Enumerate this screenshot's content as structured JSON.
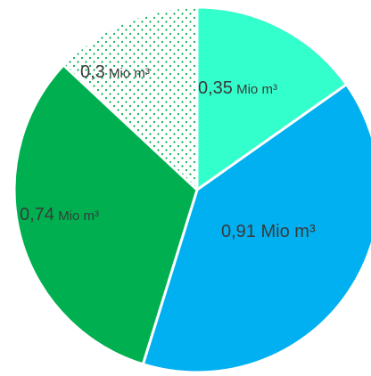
{
  "chart_data": {
    "type": "pie",
    "start_angle_deg": 0,
    "direction": "clockwise",
    "slices": [
      {
        "value": 0.35,
        "value_label": "0,35",
        "unit_label": "Mio m³",
        "color": "#33FFCC",
        "fill": "solid"
      },
      {
        "value": 0.91,
        "value_label": "0,91",
        "unit_label": "Mio m³",
        "color": "#00B0F0",
        "fill": "solid"
      },
      {
        "value": 0.74,
        "value_label": "0,74",
        "unit_label": "Mio m³",
        "color": "#00B050",
        "fill": "solid"
      },
      {
        "value": 0.3,
        "value_label": "0,3",
        "unit_label": "Mio m³",
        "color": "#00B050",
        "fill": "dotted"
      }
    ]
  }
}
